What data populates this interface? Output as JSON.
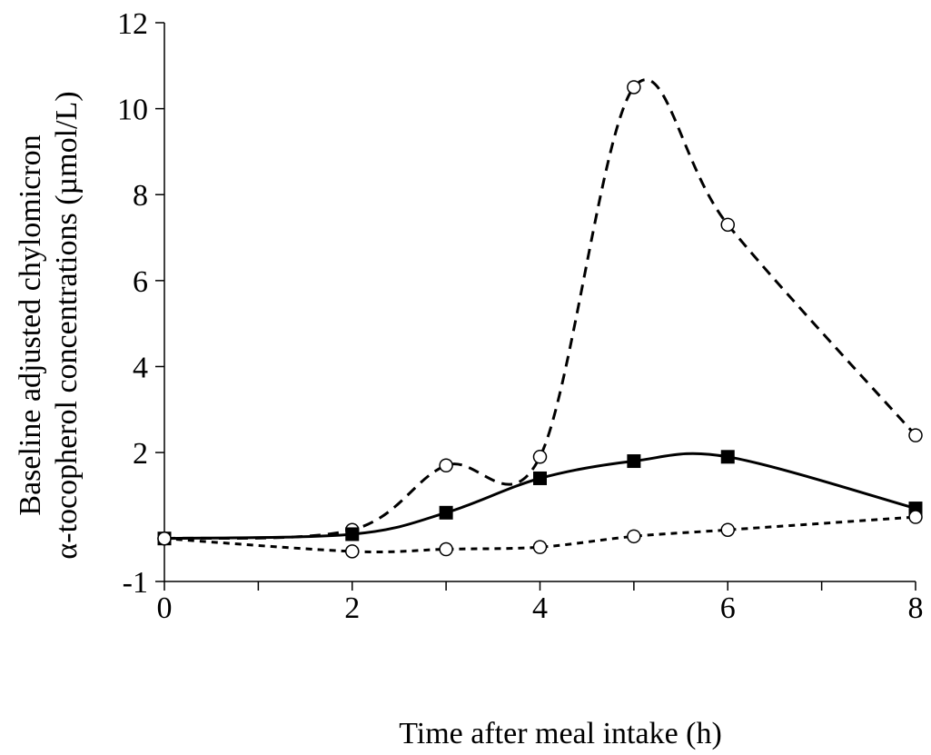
{
  "chart_data": {
    "type": "line",
    "title": "",
    "xlabel": "Time after meal intake (h)",
    "ylabel_lines": [
      "Baseline adjusted chylomicron",
      "α-tocopherol concentrations (µmol/L)"
    ],
    "xlim": [
      0,
      8
    ],
    "ylim": [
      -1,
      12
    ],
    "x_ticks": [
      0,
      2,
      4,
      6,
      8
    ],
    "x_minor_ticks": [
      1,
      3,
      5,
      7
    ],
    "y_ticks": [
      -1,
      2,
      4,
      6,
      8,
      10,
      12
    ],
    "y_tick_labels": [
      "-1",
      "2",
      "4",
      "6",
      "8",
      "10",
      "12"
    ],
    "grid": false,
    "legend": "none",
    "series": [
      {
        "style": "dashed",
        "marker": "open-circle",
        "x": [
          0,
          2,
          3,
          4,
          5,
          6,
          8
        ],
        "y": [
          0,
          0.2,
          1.7,
          1.9,
          10.5,
          7.3,
          2.4
        ]
      },
      {
        "style": "solid",
        "marker": "filled-square",
        "x": [
          0,
          2,
          3,
          4,
          5,
          6,
          8
        ],
        "y": [
          0,
          0.1,
          0.6,
          1.4,
          1.8,
          1.9,
          0.7
        ]
      },
      {
        "style": "short-dashed",
        "marker": "open-circle",
        "x": [
          0,
          2,
          3,
          4,
          5,
          6,
          8
        ],
        "y": [
          0,
          -0.3,
          -0.25,
          -0.2,
          0.05,
          0.2,
          0.5
        ]
      }
    ]
  }
}
